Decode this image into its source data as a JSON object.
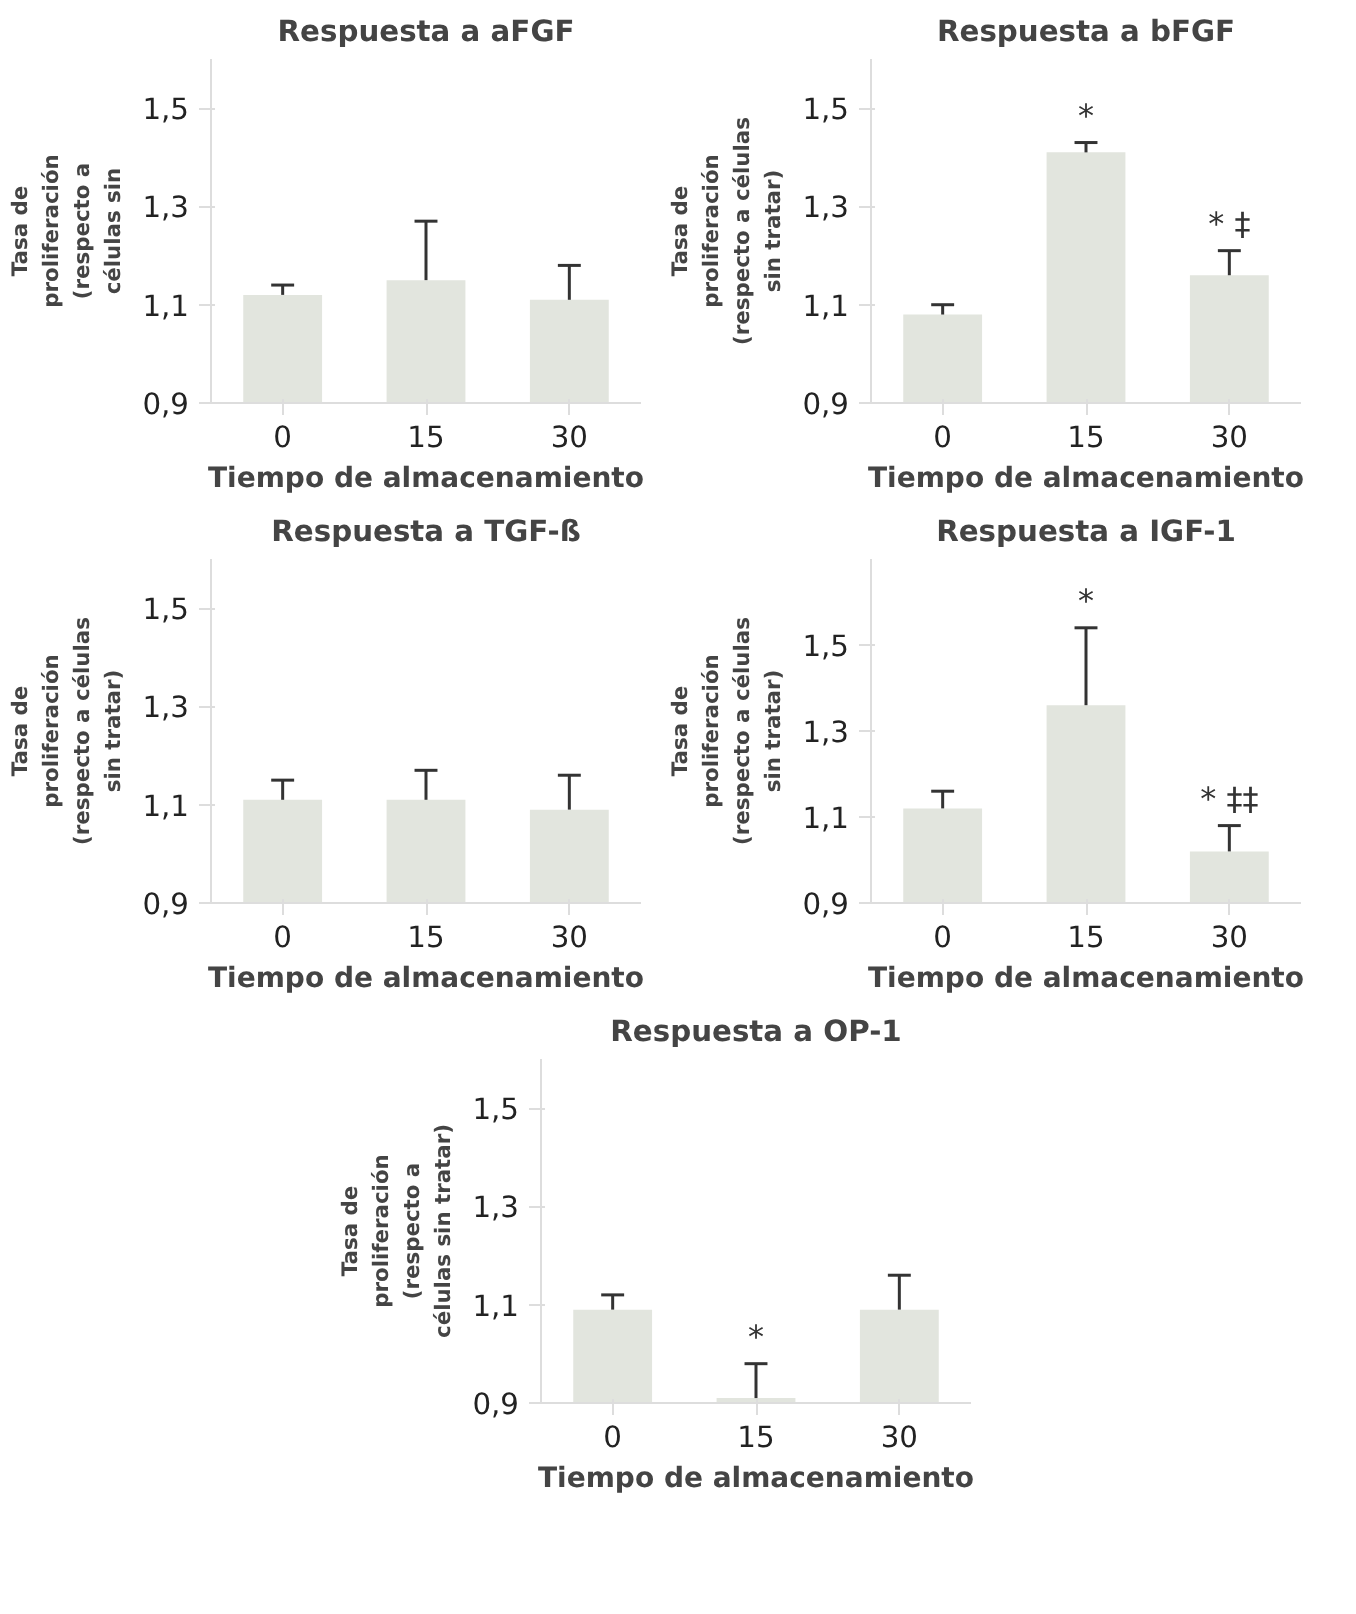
{
  "chart_data": [
    {
      "type": "bar",
      "title": "Respuesta a aFGF",
      "xlabel": "Tiempo de almacenamiento",
      "ylabel": "Tasa de\nproliferación\n(respecto a\ncélulas sin",
      "categories": [
        "0",
        "15",
        "30"
      ],
      "values": [
        1.12,
        1.15,
        1.11
      ],
      "errors": [
        [
          1.12,
          1.14
        ],
        [
          1.15,
          1.27
        ],
        [
          1.11,
          1.18
        ]
      ],
      "color": "#e2e5de",
      "ylim": [
        0.9,
        1.6
      ],
      "yticks": [
        {
          "value": 0.9,
          "label": "0,9"
        },
        {
          "value": 1.1,
          "label": "1,1"
        },
        {
          "value": 1.3,
          "label": "1,3"
        },
        {
          "value": 1.5,
          "label": "1,5"
        }
      ],
      "grid": false
    },
    {
      "type": "bar",
      "title": "Respuesta a bFGF",
      "xlabel": "Tiempo de almacenamiento",
      "ylabel": "Tasa de\nproliferación\n(respecto a células\nsin tratar)",
      "categories": [
        "0",
        "15",
        "30"
      ],
      "values": [
        1.08,
        1.41,
        1.16
      ],
      "errors": [
        [
          1.08,
          1.1
        ],
        [
          1.41,
          1.43
        ],
        [
          1.16,
          1.21
        ]
      ],
      "color": "#e2e5de",
      "ylim": [
        0.9,
        1.6
      ],
      "yticks": [
        {
          "value": 0.9,
          "label": "0,9"
        },
        {
          "value": 1.1,
          "label": "1,1"
        },
        {
          "value": 1.3,
          "label": "1,3"
        },
        {
          "value": 1.5,
          "label": "1,5"
        }
      ],
      "grid": false,
      "annotations": [
        {
          "text": "*",
          "x": "15",
          "y": 1.43
        },
        {
          "text": "* ‡",
          "x": "30",
          "y": 1.21
        }
      ]
    },
    {
      "type": "bar",
      "title": "Respuesta a TGF-ß",
      "xlabel": "Tiempo de almacenamiento",
      "ylabel": "Tasa de\nproliferación\n(respecto a células\nsin tratar)",
      "categories": [
        "0",
        "15",
        "30"
      ],
      "values": [
        1.11,
        1.11,
        1.09
      ],
      "errors": [
        [
          1.11,
          1.15
        ],
        [
          1.11,
          1.17
        ],
        [
          1.09,
          1.16
        ]
      ],
      "color": "#e2e5de",
      "ylim": [
        0.9,
        1.6
      ],
      "yticks": [
        {
          "value": 0.9,
          "label": "0,9"
        },
        {
          "value": 1.1,
          "label": "1,1"
        },
        {
          "value": 1.3,
          "label": "1,3"
        },
        {
          "value": 1.5,
          "label": "1,5"
        }
      ],
      "grid": false
    },
    {
      "type": "bar",
      "title": "Respuesta a IGF-1",
      "xlabel": "Tiempo de almacenamiento",
      "ylabel": "Tasa de\nproliferación\n(respecto a células\nsin tratar)",
      "categories": [
        "0",
        "15",
        "30"
      ],
      "values": [
        1.12,
        1.36,
        1.02
      ],
      "errors": [
        [
          1.12,
          1.16
        ],
        [
          1.36,
          1.54
        ],
        [
          1.02,
          1.08
        ]
      ],
      "color": "#e2e5de",
      "ylim": [
        0.9,
        1.7
      ],
      "yticks": [
        {
          "value": 0.9,
          "label": "0,9"
        },
        {
          "value": 1.1,
          "label": "1,1"
        },
        {
          "value": 1.3,
          "label": "1,3"
        },
        {
          "value": 1.5,
          "label": "1,5"
        }
      ],
      "grid": false,
      "annotations": [
        {
          "text": "*",
          "x": "15",
          "y": 1.54
        },
        {
          "text": "* ‡‡",
          "x": "30",
          "y": 1.08
        }
      ]
    },
    {
      "type": "bar",
      "title": "Respuesta a OP-1",
      "xlabel": "Tiempo de almacenamiento",
      "ylabel": "Tasa de\nproliferación\n(respecto a\ncélulas sin tratar)",
      "categories": [
        "0",
        "15",
        "30"
      ],
      "values": [
        1.09,
        0.91,
        1.09
      ],
      "errors": [
        [
          1.09,
          1.12
        ],
        [
          0.91,
          0.98
        ],
        [
          1.09,
          1.16
        ]
      ],
      "color": "#e2e5de",
      "ylim": [
        0.9,
        1.6
      ],
      "yticks": [
        {
          "value": 0.9,
          "label": "0,9"
        },
        {
          "value": 1.1,
          "label": "1,1"
        },
        {
          "value": 1.3,
          "label": "1,3"
        },
        {
          "value": 1.5,
          "label": "1,5"
        }
      ],
      "grid": false,
      "annotations": [
        {
          "text": "*",
          "x": "15",
          "y": 0.98
        }
      ]
    }
  ]
}
